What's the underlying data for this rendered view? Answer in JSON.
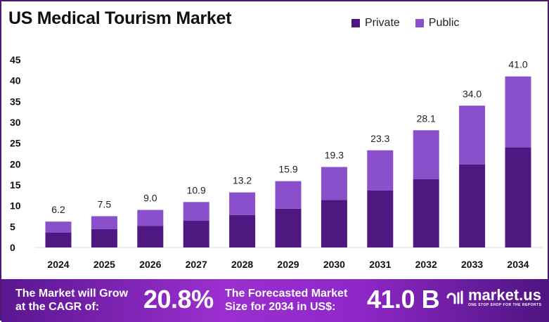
{
  "chart_data": {
    "type": "bar",
    "stacked": true,
    "title": "US Medical Tourism Market",
    "categories": [
      "2024",
      "2025",
      "2026",
      "2027",
      "2028",
      "2029",
      "2030",
      "2031",
      "2032",
      "2033",
      "2034"
    ],
    "series": [
      {
        "name": "Private",
        "color": "#4f1780",
        "values": [
          3.6,
          4.4,
          5.2,
          6.4,
          7.8,
          9.3,
          11.4,
          13.7,
          16.4,
          19.9,
          24.0
        ]
      },
      {
        "name": "Public",
        "color": "#8a4fcb",
        "values": [
          2.6,
          3.1,
          3.8,
          4.5,
          5.4,
          6.6,
          7.9,
          9.6,
          11.7,
          14.1,
          17.0
        ]
      }
    ],
    "totals": [
      "6.2",
      "7.5",
      "9.0",
      "10.9",
      "13.2",
      "15.9",
      "19.3",
      "23.3",
      "28.1",
      "34.0",
      "41.0"
    ],
    "ylim": [
      0,
      45
    ],
    "yticks": [
      "0",
      "5",
      "10",
      "15",
      "20",
      "25",
      "30",
      "35",
      "40",
      "45"
    ],
    "grid": false,
    "legend": "top-right",
    "xlabel": "",
    "ylabel": ""
  },
  "footer": {
    "cagr_label_1": "The Market will Grow",
    "cagr_label_2": "at the CAGR of:",
    "cagr_value": "20.8%",
    "size_label_1": "The Forecasted Market",
    "size_label_2": "Size for 2034 in US$:",
    "size_value": "41.0 B",
    "logo_text": "market.us",
    "logo_tagline": "ONE STOP SHOP FOR THE REPORTS"
  }
}
